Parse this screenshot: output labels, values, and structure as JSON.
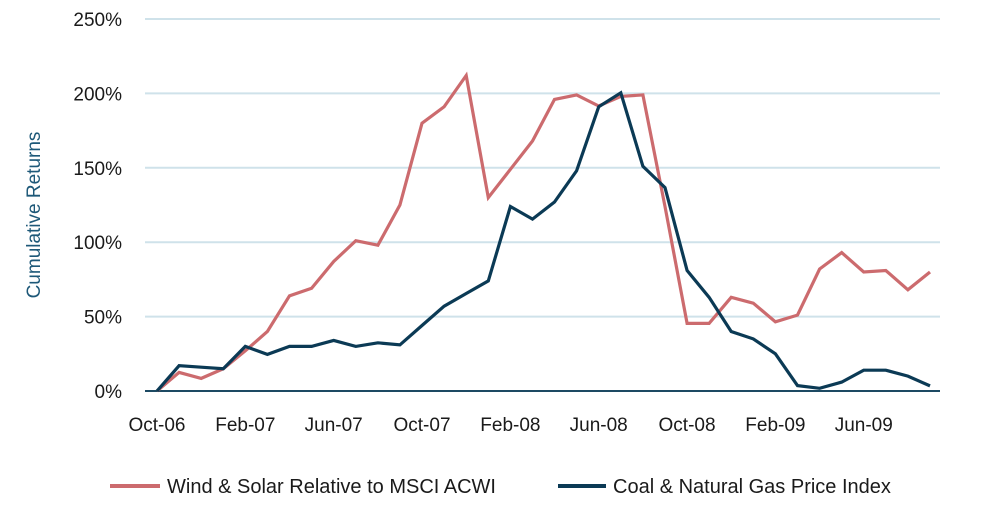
{
  "chart_data": {
    "type": "line",
    "title": "",
    "xlabel": "",
    "ylabel": "Cumulative Returns",
    "ylim": [
      0,
      250
    ],
    "yticks": [
      "0%",
      "50%",
      "100%",
      "150%",
      "200%",
      "250%"
    ],
    "ytick_values": [
      0,
      50,
      100,
      150,
      200,
      250
    ],
    "grid": true,
    "legend_position": "bottom",
    "x": [
      "Oct-06",
      "Nov-06",
      "Dec-06",
      "Jan-07",
      "Feb-07",
      "Mar-07",
      "Apr-07",
      "May-07",
      "Jun-07",
      "Jul-07",
      "Aug-07",
      "Sep-07",
      "Oct-07",
      "Nov-07",
      "Dec-07",
      "Jan-08",
      "Feb-08",
      "Mar-08",
      "Apr-08",
      "May-08",
      "Jun-08",
      "Jul-08",
      "Aug-08",
      "Sep-08",
      "Oct-08",
      "Nov-08",
      "Dec-08",
      "Jan-09",
      "Feb-09",
      "Mar-09",
      "Apr-09",
      "May-09",
      "Jun-09",
      "Jul-09",
      "Aug-09",
      "Sep-09"
    ],
    "xtick_labels": [
      "Oct-06",
      "Feb-07",
      "Jun-07",
      "Oct-07",
      "Feb-08",
      "Jun-08",
      "Oct-08",
      "Feb-09",
      "Jun-09"
    ],
    "xtick_indices": [
      0,
      4,
      8,
      12,
      16,
      20,
      24,
      28,
      32
    ],
    "series": [
      {
        "name": "Wind & Solar Relative to MSCI ACWI",
        "color": "#cc6b6e",
        "values": [
          0,
          12.5,
          8.5,
          15,
          27,
          40,
          64,
          69,
          87,
          101,
          98,
          125,
          180,
          191,
          212,
          130,
          149,
          168,
          196,
          199,
          191.5,
          198,
          199,
          124,
          45.4,
          45.4,
          63,
          59,
          46.5,
          51,
          82,
          93,
          80,
          81,
          68,
          80
        ]
      },
      {
        "name": "Coal & Natural Gas Price Index",
        "color": "#0b3a55",
        "values": [
          0,
          17,
          16,
          15,
          30,
          24.6,
          30,
          30,
          34,
          30,
          32.4,
          31,
          44,
          57,
          65.5,
          74,
          124,
          115.5,
          127,
          148,
          191,
          200.4,
          151,
          136.7,
          81,
          63,
          40,
          35,
          25,
          3.6,
          1.8,
          6,
          14,
          14,
          10,
          3.4
        ]
      }
    ]
  },
  "colors": {
    "grid": "#cfe2ea",
    "axis": "#1d4a63"
  }
}
